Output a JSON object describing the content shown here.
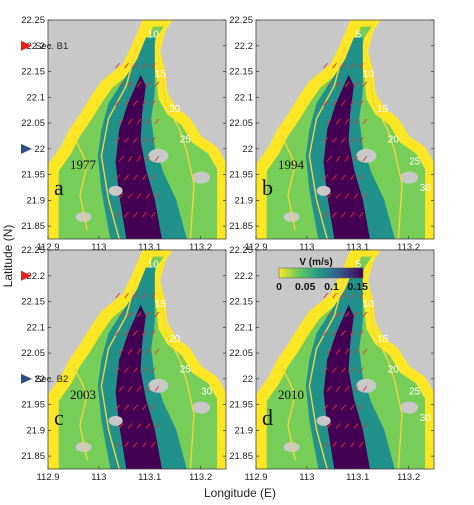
{
  "chart_data": [
    {
      "type": "heatmap",
      "panel": "a",
      "year": "1977",
      "contour_labels": [
        "10",
        "15",
        "20",
        "25"
      ],
      "sections": [
        {
          "name": "Sec. B1",
          "lat": 22.2,
          "color": "#e0241b"
        },
        {
          "name": "",
          "lat": 22.0,
          "color": "#2e4f86"
        }
      ]
    },
    {
      "type": "heatmap",
      "panel": "b",
      "year": "1994",
      "contour_labels": [
        "5",
        "10",
        "15",
        "20",
        "25",
        "30"
      ],
      "sections": []
    },
    {
      "type": "heatmap",
      "panel": "c",
      "year": "2003",
      "contour_labels": [
        "10",
        "15",
        "20",
        "25",
        "30"
      ],
      "sections": [
        {
          "name": "",
          "lat": 22.2,
          "color": "#e0241b"
        },
        {
          "name": "Sec. B2",
          "lat": 22.0,
          "color": "#2e4f86"
        }
      ]
    },
    {
      "type": "heatmap",
      "panel": "d",
      "year": "2010",
      "contour_labels": [
        "5",
        "10",
        "15",
        "20",
        "25",
        "30"
      ],
      "sections": []
    }
  ],
  "axes": {
    "xlabel": "Longitude (E)",
    "ylabel": "Latitude (N)",
    "xlim": [
      112.9,
      113.25
    ],
    "ylim": [
      21.825,
      22.25
    ],
    "xticks": [
      112.9,
      113,
      113.1,
      113.2
    ],
    "xtick_labels": [
      "112.9",
      "113",
      "113.1",
      "113.2"
    ],
    "yticks": [
      21.85,
      21.9,
      21.95,
      22,
      22.05,
      22.1,
      22.15,
      22.2,
      22.25
    ],
    "ytick_labels": [
      "21.85",
      "21.9",
      "21.95",
      "22",
      "22.05",
      "22.1",
      "22.15",
      "22.2",
      "22.25"
    ]
  },
  "colorbar": {
    "title": "V (m/s)",
    "range": [
      0,
      0.16
    ],
    "ticks": [
      0,
      0.05,
      0.1,
      0.15
    ],
    "tick_labels": [
      "0",
      "0.05",
      "0.1",
      "0.15"
    ],
    "colors": [
      "#fde725",
      "#5ec962",
      "#21918c",
      "#3b528b",
      "#440154"
    ]
  },
  "colors": {
    "land": "#c8c8c8",
    "contour": "#f2d53c",
    "arrow": "#e8322e"
  }
}
